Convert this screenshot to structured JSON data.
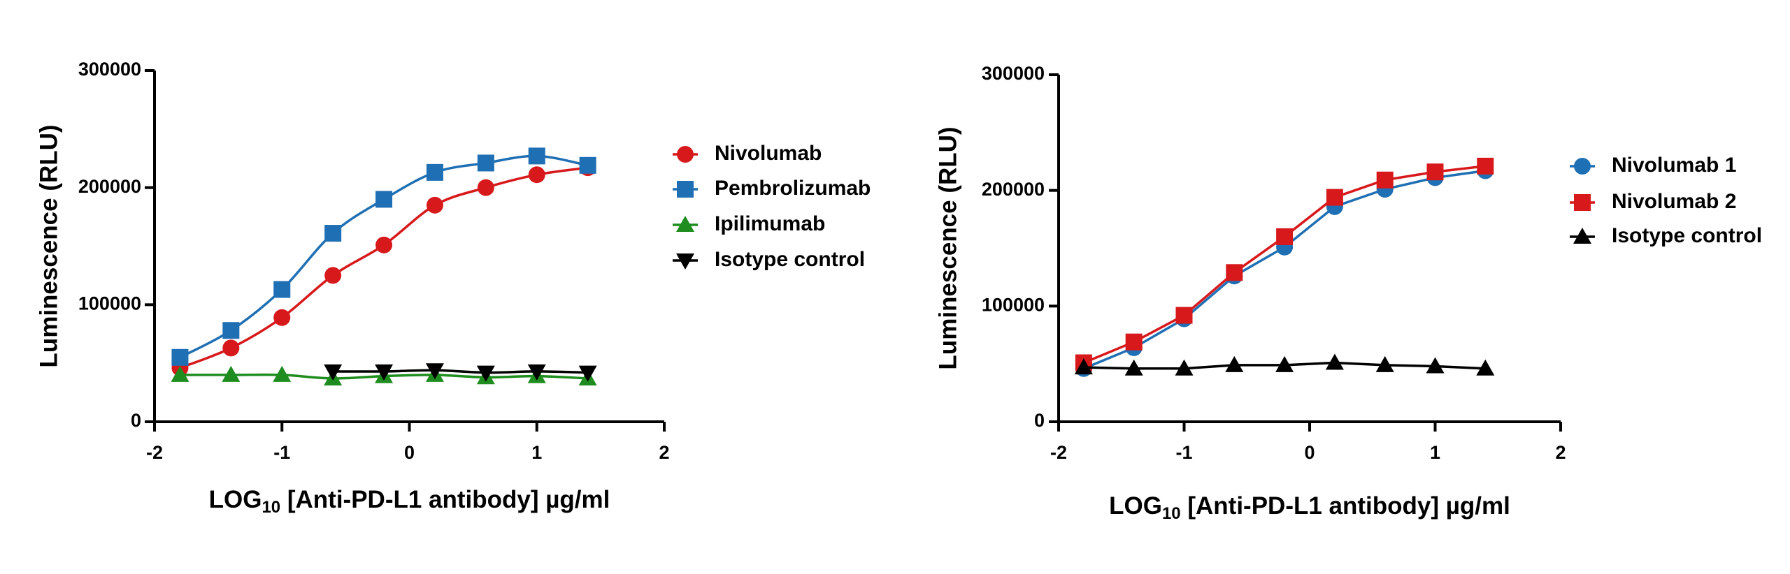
{
  "chart_data": [
    {
      "type": "line",
      "title": "",
      "xlabel": "LOG",
      "xlabel_sub": "10",
      "xlabel_rest": " [Anti-PD-L1 antibody] µg/ml",
      "ylabel": "Luminescence (RLU)",
      "xlim": [
        -2,
        2
      ],
      "ylim": [
        0,
        300000
      ],
      "xticks": [
        "-2",
        "-1",
        "0",
        "1",
        "2"
      ],
      "yticks": [
        "0",
        "100000",
        "200000",
        "300000"
      ],
      "grid": false,
      "legend_position": "right",
      "x": [
        -1.8,
        -1.4,
        -1.0,
        -0.6,
        -0.2,
        0.2,
        0.6,
        1.0,
        1.4
      ],
      "series": [
        {
          "name": "Nivolumab",
          "color": "#d7191c",
          "marker": "circle",
          "smooth": true,
          "values": [
            46000,
            63000,
            89000,
            125000,
            151000,
            185000,
            200000,
            211000,
            217000
          ]
        },
        {
          "name": "Pembrolizumab",
          "color": "#1f6fb4",
          "marker": "square",
          "smooth": true,
          "values": [
            55000,
            78000,
            113000,
            161000,
            190000,
            213000,
            221000,
            227000,
            219000
          ]
        },
        {
          "name": "Ipilimumab",
          "color": "#1e8c1e",
          "marker": "triangle-up",
          "smooth": true,
          "values": [
            40000,
            40000,
            40000,
            37000,
            39000,
            40000,
            38000,
            39000,
            37000
          ]
        },
        {
          "name": "Isotype control",
          "color": "#000000",
          "marker": "triangle-down",
          "smooth": true,
          "values": null,
          "points": [
            [
              -0.6,
              43000
            ],
            [
              -0.2,
              43000
            ],
            [
              0.2,
              44000
            ],
            [
              0.6,
              42000
            ],
            [
              1.0,
              43000
            ],
            [
              1.4,
              42000
            ]
          ]
        }
      ]
    },
    {
      "type": "line",
      "title": "",
      "xlabel": "LOG",
      "xlabel_sub": "10",
      "xlabel_rest": " [Anti-PD-L1 antibody] µg/ml",
      "ylabel": "Luminescence (RLU)",
      "xlim": [
        -2,
        2
      ],
      "ylim": [
        0,
        300000
      ],
      "xticks": [
        "-2",
        "-1",
        "0",
        "1",
        "2"
      ],
      "yticks": [
        "0",
        "100000",
        "200000",
        "300000"
      ],
      "grid": false,
      "legend_position": "right",
      "x": [
        -1.8,
        -1.4,
        -1.0,
        -0.6,
        -0.2,
        0.2,
        0.6,
        1.0,
        1.4
      ],
      "series": [
        {
          "name": "Nivolumab 1",
          "color": "#1f6fb4",
          "marker": "circle",
          "smooth": false,
          "values": [
            46000,
            64000,
            89000,
            126000,
            151000,
            186000,
            201000,
            211000,
            217000
          ]
        },
        {
          "name": "Nivolumab 2",
          "color": "#d7191c",
          "marker": "square",
          "smooth": false,
          "values": [
            51000,
            69000,
            92000,
            129000,
            160000,
            194000,
            209000,
            216000,
            221000
          ]
        },
        {
          "name": "Isotype control",
          "color": "#000000",
          "marker": "triangle-up",
          "smooth": false,
          "values": [
            47000,
            46000,
            46000,
            49000,
            49000,
            51000,
            49000,
            48000,
            46000
          ]
        }
      ]
    }
  ]
}
